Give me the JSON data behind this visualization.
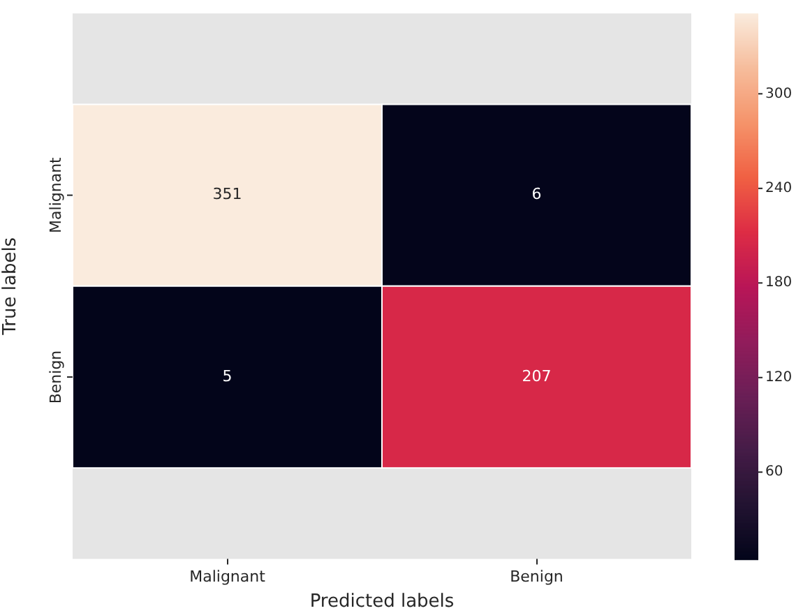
{
  "chart_data": {
    "type": "heatmap",
    "xlabel": "Predicted labels",
    "ylabel": "True labels",
    "categories": [
      "Malignant",
      "Benign"
    ],
    "y_categories": [
      "Malignant",
      "Benign"
    ],
    "cells": [
      [
        351,
        6
      ],
      [
        5,
        207
      ]
    ],
    "clim": [
      5,
      351
    ],
    "cticks": [
      60,
      120,
      180,
      240,
      300
    ],
    "data_labels": true
  }
}
